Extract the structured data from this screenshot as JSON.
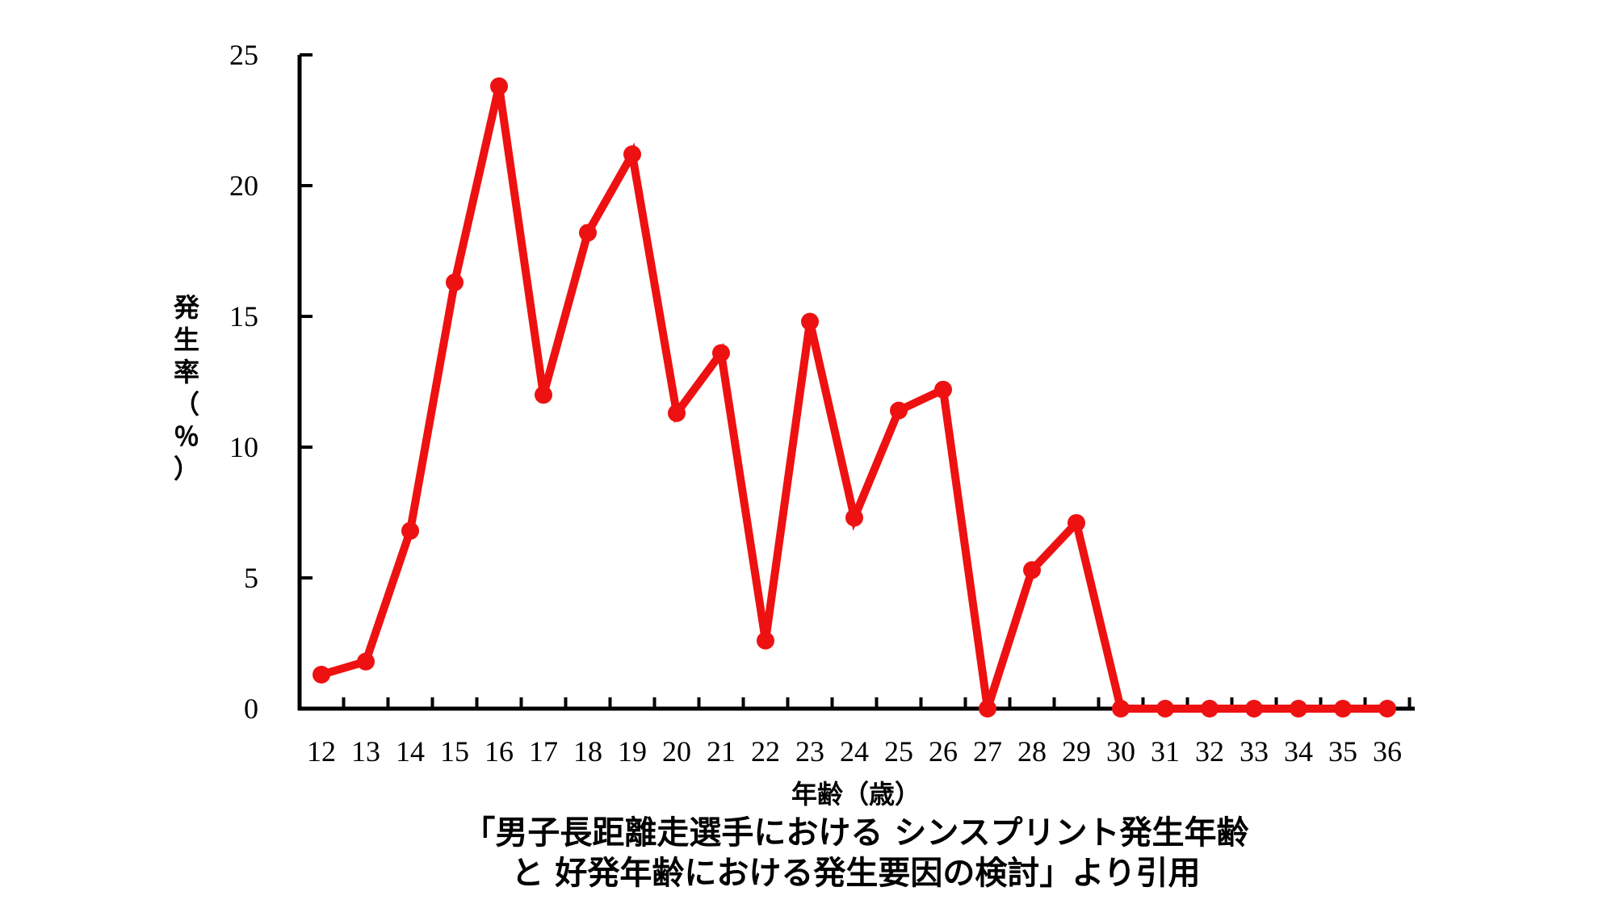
{
  "chart_data": {
    "type": "line",
    "xlabel": "年齢（歳）",
    "ylabel_chars": [
      "発",
      "生",
      "率",
      "（",
      "％",
      "）"
    ],
    "ylim": [
      0,
      25
    ],
    "yticks": [
      "0",
      "5",
      "10",
      "15",
      "20",
      "25"
    ],
    "ytick_values": [
      0,
      5,
      10,
      15,
      20,
      25
    ],
    "categories": [
      "12",
      "13",
      "14",
      "15",
      "16",
      "17",
      "18",
      "19",
      "20",
      "21",
      "22",
      "23",
      "24",
      "25",
      "26",
      "27",
      "28",
      "29",
      "30",
      "31",
      "32",
      "33",
      "34",
      "35",
      "36"
    ],
    "series": [
      {
        "color": "#ee1111",
        "values": [
          1.3,
          1.8,
          6.8,
          16.3,
          23.8,
          12.0,
          18.2,
          21.2,
          11.3,
          13.6,
          2.6,
          14.8,
          7.3,
          11.4,
          12.2,
          0,
          5.3,
          7.1,
          0,
          0,
          0,
          0,
          0,
          0,
          0
        ]
      }
    ],
    "grid": false,
    "caption_lines": [
      "「男子長距離走選手における シンスプリント発生年齢",
      "と 好発年齢における発生要因の検討」より引用"
    ]
  }
}
